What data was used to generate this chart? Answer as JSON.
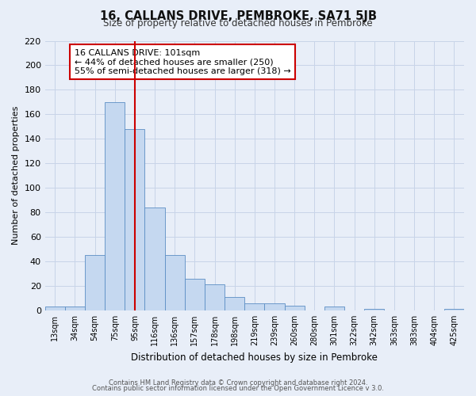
{
  "title": "16, CALLANS DRIVE, PEMBROKE, SA71 5JB",
  "subtitle": "Size of property relative to detached houses in Pembroke",
  "xlabel": "Distribution of detached houses by size in Pembroke",
  "ylabel": "Number of detached properties",
  "bar_labels": [
    "13sqm",
    "34sqm",
    "54sqm",
    "75sqm",
    "95sqm",
    "116sqm",
    "136sqm",
    "157sqm",
    "178sqm",
    "198sqm",
    "219sqm",
    "239sqm",
    "260sqm",
    "280sqm",
    "301sqm",
    "322sqm",
    "342sqm",
    "363sqm",
    "383sqm",
    "404sqm",
    "425sqm"
  ],
  "bar_heights": [
    3,
    3,
    45,
    170,
    148,
    84,
    45,
    26,
    21,
    11,
    6,
    6,
    4,
    0,
    3,
    0,
    1,
    0,
    0,
    0,
    1
  ],
  "bar_color": "#c5d8f0",
  "bar_edge_color": "#5b8ec4",
  "vline_x": 4,
  "vline_color": "#cc0000",
  "ylim": [
    0,
    220
  ],
  "yticks": [
    0,
    20,
    40,
    60,
    80,
    100,
    120,
    140,
    160,
    180,
    200,
    220
  ],
  "annotation_title": "16 CALLANS DRIVE: 101sqm",
  "annotation_line1": "← 44% of detached houses are smaller (250)",
  "annotation_line2": "55% of semi-detached houses are larger (318) →",
  "annotation_box_color": "#ffffff",
  "annotation_box_edge": "#cc0000",
  "grid_color": "#c8d4e8",
  "background_color": "#e8eef8",
  "footer1": "Contains HM Land Registry data © Crown copyright and database right 2024.",
  "footer2": "Contains public sector information licensed under the Open Government Licence v 3.0."
}
